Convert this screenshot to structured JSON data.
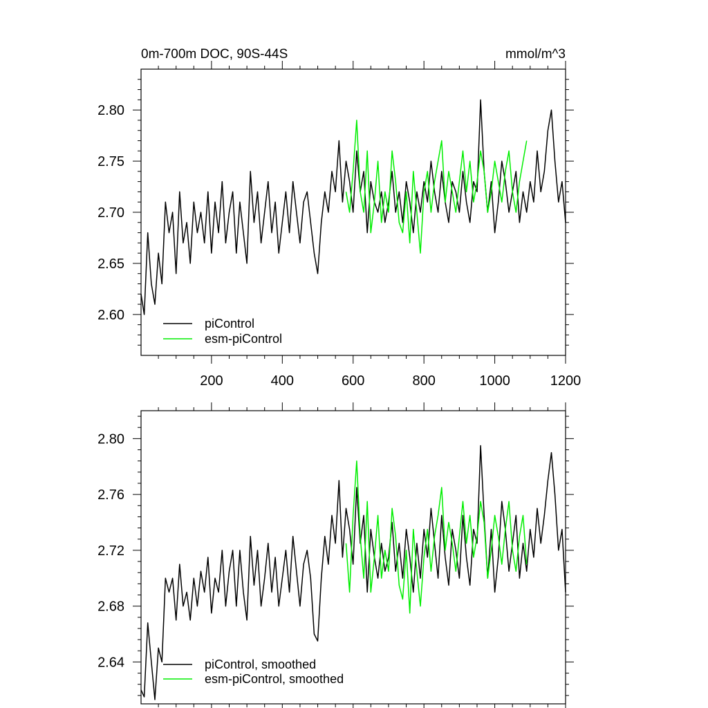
{
  "chart_data": [
    {
      "type": "line",
      "title_left": "0m-700m DOC, 90S-44S",
      "title_right": "mmol/m^3",
      "xlim": [
        1,
        1200
      ],
      "ylim": [
        2.56,
        2.84
      ],
      "xticks": [
        200,
        400,
        600,
        800,
        1000,
        1200
      ],
      "xtick_labels": [
        "200",
        "400",
        "600",
        "800",
        "1000",
        "1200"
      ],
      "yticks": [
        2.6,
        2.65,
        2.7,
        2.75,
        2.8
      ],
      "ytick_labels": [
        "2.60",
        "2.65",
        "2.70",
        "2.75",
        "2.80"
      ],
      "legend_position": "bottom-left",
      "series": [
        {
          "name": "piControl",
          "color": "#000000",
          "x": [
            1,
            10,
            20,
            30,
            40,
            50,
            60,
            70,
            80,
            90,
            100,
            110,
            120,
            130,
            140,
            150,
            160,
            170,
            180,
            190,
            200,
            210,
            220,
            230,
            240,
            250,
            260,
            270,
            280,
            290,
            300,
            310,
            320,
            330,
            340,
            350,
            360,
            370,
            380,
            390,
            400,
            410,
            420,
            430,
            440,
            450,
            460,
            470,
            480,
            490,
            500,
            510,
            520,
            530,
            540,
            550,
            560,
            570,
            580,
            590,
            600,
            610,
            620,
            630,
            640,
            650,
            660,
            670,
            680,
            690,
            700,
            710,
            720,
            730,
            740,
            750,
            760,
            770,
            780,
            790,
            800,
            810,
            820,
            830,
            840,
            850,
            860,
            870,
            880,
            890,
            900,
            910,
            920,
            930,
            940,
            950,
            960,
            970,
            980,
            990,
            1000,
            1010,
            1020,
            1030,
            1040,
            1050,
            1060,
            1070,
            1080,
            1090,
            1100,
            1110,
            1120,
            1130,
            1140,
            1150,
            1160,
            1170,
            1180,
            1190,
            1200
          ],
          "values": [
            2.62,
            2.6,
            2.68,
            2.63,
            2.61,
            2.66,
            2.63,
            2.71,
            2.68,
            2.7,
            2.64,
            2.72,
            2.67,
            2.69,
            2.65,
            2.71,
            2.68,
            2.7,
            2.67,
            2.72,
            2.66,
            2.71,
            2.68,
            2.73,
            2.67,
            2.7,
            2.72,
            2.66,
            2.71,
            2.68,
            2.65,
            2.74,
            2.69,
            2.72,
            2.67,
            2.7,
            2.73,
            2.68,
            2.71,
            2.66,
            2.69,
            2.72,
            2.68,
            2.73,
            2.7,
            2.67,
            2.71,
            2.72,
            2.69,
            2.66,
            2.64,
            2.69,
            2.72,
            2.7,
            2.74,
            2.72,
            2.77,
            2.71,
            2.75,
            2.73,
            2.7,
            2.76,
            2.72,
            2.74,
            2.68,
            2.73,
            2.71,
            2.7,
            2.72,
            2.69,
            2.71,
            2.74,
            2.7,
            2.72,
            2.69,
            2.73,
            2.71,
            2.68,
            2.72,
            2.7,
            2.73,
            2.71,
            2.75,
            2.72,
            2.7,
            2.74,
            2.71,
            2.69,
            2.73,
            2.72,
            2.7,
            2.74,
            2.71,
            2.69,
            2.73,
            2.72,
            2.81,
            2.74,
            2.7,
            2.73,
            2.68,
            2.71,
            2.75,
            2.73,
            2.7,
            2.72,
            2.74,
            2.69,
            2.72,
            2.7,
            2.73,
            2.71,
            2.76,
            2.72,
            2.74,
            2.78,
            2.8,
            2.75,
            2.71,
            2.73,
            2.69
          ]
        },
        {
          "name": "esm-piControl",
          "color": "#00ee00",
          "x": [
            580,
            590,
            600,
            610,
            620,
            630,
            640,
            650,
            660,
            670,
            680,
            690,
            700,
            710,
            720,
            730,
            740,
            750,
            760,
            770,
            780,
            790,
            800,
            810,
            820,
            830,
            840,
            850,
            860,
            870,
            880,
            890,
            900,
            910,
            920,
            930,
            940,
            950,
            960,
            970,
            980,
            990,
            1000,
            1010,
            1020,
            1030,
            1040,
            1050,
            1060,
            1070,
            1080,
            1090
          ],
          "values": [
            2.72,
            2.7,
            2.74,
            2.79,
            2.72,
            2.7,
            2.76,
            2.68,
            2.71,
            2.75,
            2.69,
            2.72,
            2.7,
            2.76,
            2.73,
            2.69,
            2.68,
            2.72,
            2.67,
            2.74,
            2.7,
            2.66,
            2.72,
            2.74,
            2.7,
            2.73,
            2.75,
            2.77,
            2.71,
            2.74,
            2.72,
            2.7,
            2.73,
            2.76,
            2.72,
            2.75,
            2.71,
            2.73,
            2.76,
            2.74,
            2.7,
            2.72,
            2.75,
            2.73,
            2.71,
            2.74,
            2.76,
            2.72,
            2.7,
            2.73,
            2.75,
            2.77
          ]
        }
      ]
    },
    {
      "type": "line",
      "xlim": [
        1,
        1200
      ],
      "ylim": [
        2.61,
        2.82
      ],
      "xticks": [
        200,
        400,
        600,
        800,
        1000,
        1200
      ],
      "yticks": [
        2.64,
        2.68,
        2.72,
        2.76,
        2.8
      ],
      "ytick_labels": [
        "2.64",
        "2.68",
        "2.72",
        "2.76",
        "2.80"
      ],
      "legend_position": "bottom-left",
      "series": [
        {
          "name": "piControl, smoothed",
          "color": "#000000",
          "x": [
            1,
            10,
            20,
            30,
            40,
            50,
            60,
            70,
            80,
            90,
            100,
            110,
            120,
            130,
            140,
            150,
            160,
            170,
            180,
            190,
            200,
            210,
            220,
            230,
            240,
            250,
            260,
            270,
            280,
            290,
            300,
            310,
            320,
            330,
            340,
            350,
            360,
            370,
            380,
            390,
            400,
            410,
            420,
            430,
            440,
            450,
            460,
            470,
            480,
            490,
            500,
            510,
            520,
            530,
            540,
            550,
            560,
            570,
            580,
            590,
            600,
            610,
            620,
            630,
            640,
            650,
            660,
            670,
            680,
            690,
            700,
            710,
            720,
            730,
            740,
            750,
            760,
            770,
            780,
            790,
            800,
            810,
            820,
            830,
            840,
            850,
            860,
            870,
            880,
            890,
            900,
            910,
            920,
            930,
            940,
            950,
            960,
            970,
            980,
            990,
            1000,
            1010,
            1020,
            1030,
            1040,
            1050,
            1060,
            1070,
            1080,
            1090,
            1100,
            1110,
            1120,
            1130,
            1140,
            1150,
            1160,
            1170,
            1180,
            1190,
            1200
          ],
          "values": [
            2.62,
            2.615,
            2.668,
            2.64,
            2.613,
            2.65,
            2.64,
            2.7,
            2.69,
            2.7,
            2.67,
            2.71,
            2.68,
            2.69,
            2.67,
            2.7,
            2.68,
            2.705,
            2.69,
            2.715,
            2.675,
            2.7,
            2.69,
            2.72,
            2.68,
            2.705,
            2.72,
            2.68,
            2.72,
            2.69,
            2.67,
            2.73,
            2.695,
            2.72,
            2.68,
            2.7,
            2.725,
            2.69,
            2.715,
            2.68,
            2.7,
            2.72,
            2.69,
            2.73,
            2.705,
            2.68,
            2.71,
            2.72,
            2.7,
            2.66,
            2.655,
            2.7,
            2.73,
            2.71,
            2.745,
            2.725,
            2.77,
            2.715,
            2.75,
            2.735,
            2.71,
            2.765,
            2.725,
            2.745,
            2.69,
            2.735,
            2.715,
            2.7,
            2.725,
            2.705,
            2.715,
            2.74,
            2.705,
            2.725,
            2.7,
            2.735,
            2.715,
            2.69,
            2.725,
            2.7,
            2.735,
            2.715,
            2.75,
            2.725,
            2.7,
            2.745,
            2.715,
            2.695,
            2.735,
            2.72,
            2.7,
            2.745,
            2.715,
            2.695,
            2.735,
            2.725,
            2.795,
            2.745,
            2.7,
            2.735,
            2.69,
            2.715,
            2.755,
            2.735,
            2.705,
            2.725,
            2.745,
            2.7,
            2.725,
            2.705,
            2.735,
            2.715,
            2.75,
            2.725,
            2.745,
            2.77,
            2.79,
            2.76,
            2.72,
            2.735,
            2.69
          ]
        },
        {
          "name": "esm-piControl, smoothed",
          "color": "#00ee00",
          "x": [
            580,
            590,
            600,
            610,
            620,
            630,
            640,
            650,
            660,
            670,
            680,
            690,
            700,
            710,
            720,
            730,
            740,
            750,
            760,
            770,
            780,
            790,
            800,
            810,
            820,
            830,
            840,
            850,
            860,
            870,
            880,
            890,
            900,
            910,
            920,
            930,
            940,
            950,
            960,
            970,
            980,
            990,
            1000,
            1010,
            1020,
            1030,
            1040,
            1050,
            1060,
            1070,
            1080,
            1090
          ],
          "values": [
            2.725,
            2.69,
            2.745,
            2.784,
            2.73,
            2.7,
            2.755,
            2.69,
            2.715,
            2.745,
            2.7,
            2.72,
            2.705,
            2.75,
            2.73,
            2.695,
            2.685,
            2.72,
            2.675,
            2.735,
            2.705,
            2.68,
            2.715,
            2.735,
            2.705,
            2.73,
            2.745,
            2.765,
            2.72,
            2.74,
            2.725,
            2.705,
            2.73,
            2.755,
            2.725,
            2.745,
            2.715,
            2.73,
            2.755,
            2.74,
            2.7,
            2.72,
            2.745,
            2.73,
            2.71,
            2.735,
            2.755,
            2.72,
            2.705,
            2.73,
            2.745,
            2.71
          ]
        }
      ]
    }
  ]
}
